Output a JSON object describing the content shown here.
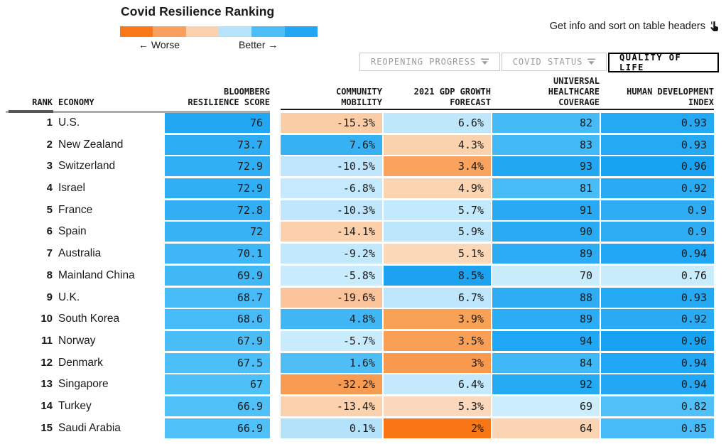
{
  "header": {
    "info_hint": "Get info and sort on table headers",
    "tabs": [
      {
        "label": "REOPENING PROGRESS",
        "has_filter_icon": true,
        "active": false
      },
      {
        "label": "COVID STATUS",
        "has_filter_icon": true,
        "active": false
      },
      {
        "label": "QUALITY OF LIFE",
        "has_filter_icon": false,
        "active": true
      }
    ]
  },
  "chart_data": {
    "type": "table",
    "title": "Covid Resilience Ranking",
    "legend": {
      "colors": [
        "#f8781a",
        "#f9a05e",
        "#fbd2ae",
        "#b6e3fc",
        "#4dbdf8",
        "#21a6f3"
      ],
      "worse_label": "← Worse",
      "better_label": "Better →"
    },
    "columns": [
      "RANK",
      "ECONOMY",
      "BLOOMBERG\nRESILIENCE SCORE",
      "COMMUNITY\nMOBILITY",
      "2021 GDP GROWTH\nFORECAST",
      "UNIVERSAL\nHEALTHCARE\nCOVERAGE",
      "HUMAN DEVELOPMENT\nINDEX"
    ],
    "rows": [
      {
        "rank": "1",
        "economy": "U.S.",
        "score": {
          "v": "76",
          "bg": "#22a7f2"
        },
        "mobility": {
          "v": "-15.3%",
          "bg": "#fbcda6"
        },
        "gdp": {
          "v": "6.6%",
          "bg": "#bfe7fc"
        },
        "healthcare": {
          "v": "82",
          "bg": "#44baf6"
        },
        "hdi": {
          "v": "0.93",
          "bg": "#25a9f3"
        }
      },
      {
        "rank": "2",
        "economy": "New Zealand",
        "score": {
          "v": "73.7",
          "bg": "#2dadf4"
        },
        "mobility": {
          "v": "7.6%",
          "bg": "#36b1f4"
        },
        "gdp": {
          "v": "4.3%",
          "bg": "#fbd2ae"
        },
        "healthcare": {
          "v": "83",
          "bg": "#41b9f6"
        },
        "hdi": {
          "v": "0.93",
          "bg": "#25a9f3"
        }
      },
      {
        "rank": "3",
        "economy": "Switzerland",
        "score": {
          "v": "72.9",
          "bg": "#31aff4"
        },
        "mobility": {
          "v": "-10.5%",
          "bg": "#bfe6fc"
        },
        "gdp": {
          "v": "3.4%",
          "bg": "#f9a35f"
        },
        "healthcare": {
          "v": "93",
          "bg": "#22a8f3"
        },
        "hdi": {
          "v": "0.96",
          "bg": "#17a3f2"
        }
      },
      {
        "rank": "4",
        "economy": "Israel",
        "score": {
          "v": "72.9",
          "bg": "#31aff4"
        },
        "mobility": {
          "v": "-6.8%",
          "bg": "#c6eafd"
        },
        "gdp": {
          "v": "4.9%",
          "bg": "#fbd4b2"
        },
        "healthcare": {
          "v": "81",
          "bg": "#48bcf7"
        },
        "hdi": {
          "v": "0.92",
          "bg": "#29abf4"
        }
      },
      {
        "rank": "5",
        "economy": "France",
        "score": {
          "v": "72.8",
          "bg": "#32aff4"
        },
        "mobility": {
          "v": "-10.3%",
          "bg": "#bfe6fc"
        },
        "gdp": {
          "v": "5.7%",
          "bg": "#c3e9fc"
        },
        "healthcare": {
          "v": "91",
          "bg": "#27aaf3"
        },
        "hdi": {
          "v": "0.9",
          "bg": "#2fadf4"
        }
      },
      {
        "rank": "6",
        "economy": "Spain",
        "score": {
          "v": "72",
          "bg": "#36b2f5"
        },
        "mobility": {
          "v": "-14.1%",
          "bg": "#fbd0aa"
        },
        "gdp": {
          "v": "5.9%",
          "bg": "#bde6fc"
        },
        "healthcare": {
          "v": "90",
          "bg": "#29abf4"
        },
        "hdi": {
          "v": "0.9",
          "bg": "#2fadf4"
        }
      },
      {
        "rank": "7",
        "economy": "Australia",
        "score": {
          "v": "70.1",
          "bg": "#3fb7f6"
        },
        "mobility": {
          "v": "-9.2%",
          "bg": "#c2e8fc"
        },
        "gdp": {
          "v": "5.1%",
          "bg": "#fbd8b8"
        },
        "healthcare": {
          "v": "89",
          "bg": "#2cacf4"
        },
        "hdi": {
          "v": "0.94",
          "bg": "#21a7f3"
        }
      },
      {
        "rank": "8",
        "economy": "Mainland China",
        "score": {
          "v": "69.9",
          "bg": "#40b8f6"
        },
        "mobility": {
          "v": "-5.8%",
          "bg": "#c8ebfd"
        },
        "gdp": {
          "v": "8.5%",
          "bg": "#1ba3f1"
        },
        "healthcare": {
          "v": "70",
          "bg": "#c9ecfd"
        },
        "hdi": {
          "v": "0.76",
          "bg": "#c9ecfd"
        }
      },
      {
        "rank": "9",
        "economy": "U.K.",
        "score": {
          "v": "68.7",
          "bg": "#46bbf7"
        },
        "mobility": {
          "v": "-19.6%",
          "bg": "#fac39a"
        },
        "gdp": {
          "v": "6.7%",
          "bg": "#bee6fc"
        },
        "healthcare": {
          "v": "88",
          "bg": "#2eadf4"
        },
        "hdi": {
          "v": "0.93",
          "bg": "#25a9f3"
        }
      },
      {
        "rank": "10",
        "economy": "South Korea",
        "score": {
          "v": "68.6",
          "bg": "#47bbf7"
        },
        "mobility": {
          "v": "4.8%",
          "bg": "#41b6f5"
        },
        "gdp": {
          "v": "3.9%",
          "bg": "#f9a154"
        },
        "healthcare": {
          "v": "89",
          "bg": "#2cacf4"
        },
        "hdi": {
          "v": "0.92",
          "bg": "#29abf4"
        }
      },
      {
        "rank": "11",
        "economy": "Norway",
        "score": {
          "v": "67.9",
          "bg": "#4abdf7"
        },
        "mobility": {
          "v": "-5.7%",
          "bg": "#c8ebfd"
        },
        "gdp": {
          "v": "3.5%",
          "bg": "#f99f56"
        },
        "healthcare": {
          "v": "94",
          "bg": "#1fa7f3"
        },
        "hdi": {
          "v": "0.96",
          "bg": "#17a3f2"
        }
      },
      {
        "rank": "12",
        "economy": "Denmark",
        "score": {
          "v": "67.5",
          "bg": "#4cbef8"
        },
        "mobility": {
          "v": "1.6%",
          "bg": "#4fbef7"
        },
        "gdp": {
          "v": "3%",
          "bg": "#f9994e"
        },
        "healthcare": {
          "v": "84",
          "bg": "#3eb8f6"
        },
        "hdi": {
          "v": "0.94",
          "bg": "#21a7f3"
        }
      },
      {
        "rank": "13",
        "economy": "Singapore",
        "score": {
          "v": "67",
          "bg": "#4ec0f8"
        },
        "mobility": {
          "v": "-32.2%",
          "bg": "#f89b52"
        },
        "gdp": {
          "v": "6.4%",
          "bg": "#c4e9fd"
        },
        "healthcare": {
          "v": "92",
          "bg": "#24a9f3"
        },
        "hdi": {
          "v": "0.94",
          "bg": "#21a7f3"
        }
      },
      {
        "rank": "14",
        "economy": "Turkey",
        "score": {
          "v": "66.9",
          "bg": "#4fc0f8"
        },
        "mobility": {
          "v": "-13.4%",
          "bg": "#fbd2ad"
        },
        "gdp": {
          "v": "5.3%",
          "bg": "#fbd8bc"
        },
        "healthcare": {
          "v": "69",
          "bg": "#cbedfd"
        },
        "hdi": {
          "v": "0.82",
          "bg": "#52c0f8"
        }
      },
      {
        "rank": "15",
        "economy": "Saudi Arabia",
        "score": {
          "v": "66.9",
          "bg": "#4fc0f8"
        },
        "mobility": {
          "v": "0.1%",
          "bg": "#b5e2fb"
        },
        "gdp": {
          "v": "2%",
          "bg": "#f87714"
        },
        "healthcare": {
          "v": "64",
          "bg": "#fbd4b4"
        },
        "hdi": {
          "v": "0.85",
          "bg": "#46bbf7"
        }
      }
    ]
  }
}
